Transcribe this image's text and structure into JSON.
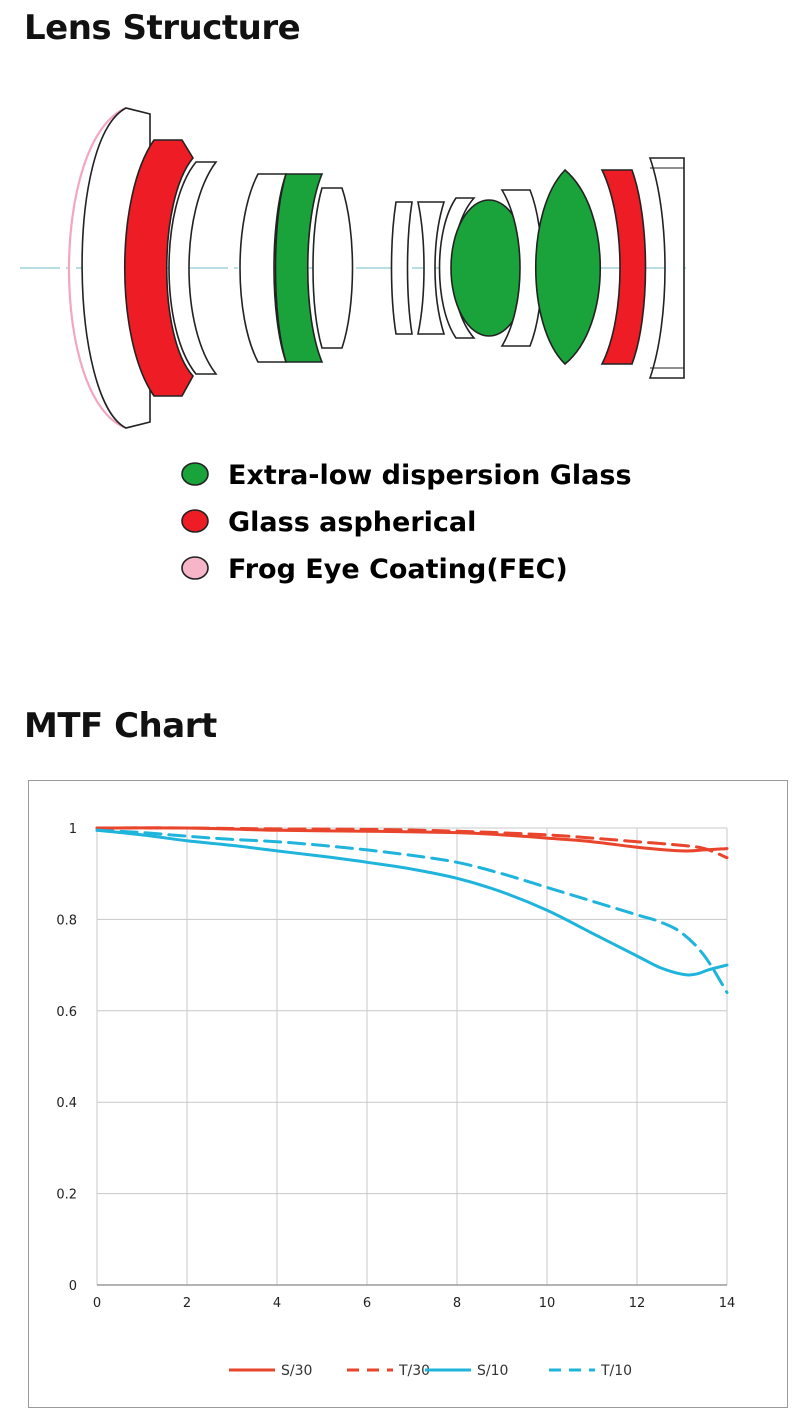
{
  "lens_structure": {
    "title": "Lens Structure",
    "legend": [
      {
        "label": "Extra-low dispersion Glass",
        "color": "#1aa33a"
      },
      {
        "label": "Glass aspherical",
        "color": "#ee1c24"
      },
      {
        "label": "Frog Eye Coating(FEC)",
        "color": "#f7b6c8"
      }
    ],
    "colors": {
      "ed": "#1aa33a",
      "asph": "#ee1c24",
      "fec": "#f4a6bd",
      "axis": "#b8dde3"
    }
  },
  "mtf": {
    "title": "MTF Chart"
  },
  "chart_data": {
    "type": "line",
    "xlim": [
      0,
      14
    ],
    "ylim": [
      0,
      1
    ],
    "x_ticks": [
      0,
      2,
      4,
      6,
      8,
      10,
      12,
      14
    ],
    "y_ticks": [
      0,
      0.2,
      0.4,
      0.6,
      0.8,
      1
    ],
    "y_tick_labels": [
      "0",
      "0.2",
      "0.4",
      "0.6",
      "0.8",
      "1"
    ],
    "grid": true,
    "legend_position": "bottom",
    "series": [
      {
        "name": "S/30",
        "color": "#e8452c",
        "dash": false,
        "points": [
          [
            0,
            1
          ],
          [
            2,
            1
          ],
          [
            4,
            0.995
          ],
          [
            6,
            0.993
          ],
          [
            8,
            0.99
          ],
          [
            9,
            0.985
          ],
          [
            10,
            0.978
          ],
          [
            11,
            0.97
          ],
          [
            12,
            0.958
          ],
          [
            13,
            0.95
          ],
          [
            13.5,
            0.952
          ],
          [
            14,
            0.955
          ]
        ]
      },
      {
        "name": "T/30",
        "color": "#e8452c",
        "dash": true,
        "points": [
          [
            0,
            1
          ],
          [
            2,
            1
          ],
          [
            4,
            0.998
          ],
          [
            6,
            0.997
          ],
          [
            8,
            0.993
          ],
          [
            10,
            0.985
          ],
          [
            11,
            0.978
          ],
          [
            12,
            0.97
          ],
          [
            13,
            0.962
          ],
          [
            13.5,
            0.955
          ],
          [
            14,
            0.935
          ]
        ]
      },
      {
        "name": "S/10",
        "color": "#1eb4dc",
        "dash": false,
        "points": [
          [
            0,
            0.995
          ],
          [
            1,
            0.985
          ],
          [
            2,
            0.972
          ],
          [
            3,
            0.962
          ],
          [
            4,
            0.95
          ],
          [
            5,
            0.938
          ],
          [
            6,
            0.925
          ],
          [
            7,
            0.91
          ],
          [
            8,
            0.89
          ],
          [
            9,
            0.86
          ],
          [
            10,
            0.82
          ],
          [
            11,
            0.77
          ],
          [
            12,
            0.72
          ],
          [
            12.5,
            0.695
          ],
          [
            13,
            0.68
          ],
          [
            13.3,
            0.68
          ],
          [
            13.6,
            0.69
          ],
          [
            14,
            0.7
          ]
        ]
      },
      {
        "name": "T/10",
        "color": "#1eb4dc",
        "dash": true,
        "points": [
          [
            0,
            0.995
          ],
          [
            1,
            0.99
          ],
          [
            2,
            0.982
          ],
          [
            3,
            0.975
          ],
          [
            4,
            0.97
          ],
          [
            5,
            0.962
          ],
          [
            6,
            0.952
          ],
          [
            7,
            0.94
          ],
          [
            8,
            0.925
          ],
          [
            9,
            0.9
          ],
          [
            10,
            0.87
          ],
          [
            11,
            0.84
          ],
          [
            12,
            0.81
          ],
          [
            12.5,
            0.795
          ],
          [
            13,
            0.77
          ],
          [
            13.5,
            0.72
          ],
          [
            14,
            0.64
          ]
        ]
      }
    ]
  }
}
